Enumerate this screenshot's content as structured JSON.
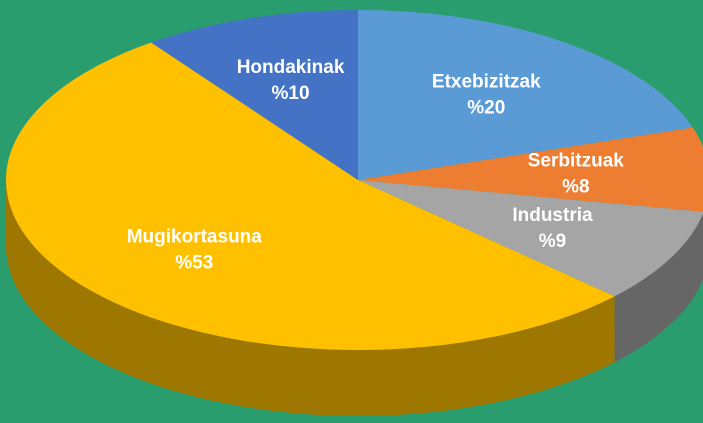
{
  "chart_data": {
    "type": "pie",
    "categories": [
      "Etxebizitzak",
      "Serbitzuak",
      "Industria",
      "Mugikortasuna",
      "Hondakinak"
    ],
    "values": [
      20,
      8,
      9,
      53,
      10
    ],
    "value_labels": [
      "%20",
      "%8",
      "%9",
      "%53",
      "%10"
    ],
    "colors": [
      "#5b9bd5",
      "#ed7d31",
      "#a5a5a5",
      "#ffc000",
      "#4472c4"
    ]
  }
}
